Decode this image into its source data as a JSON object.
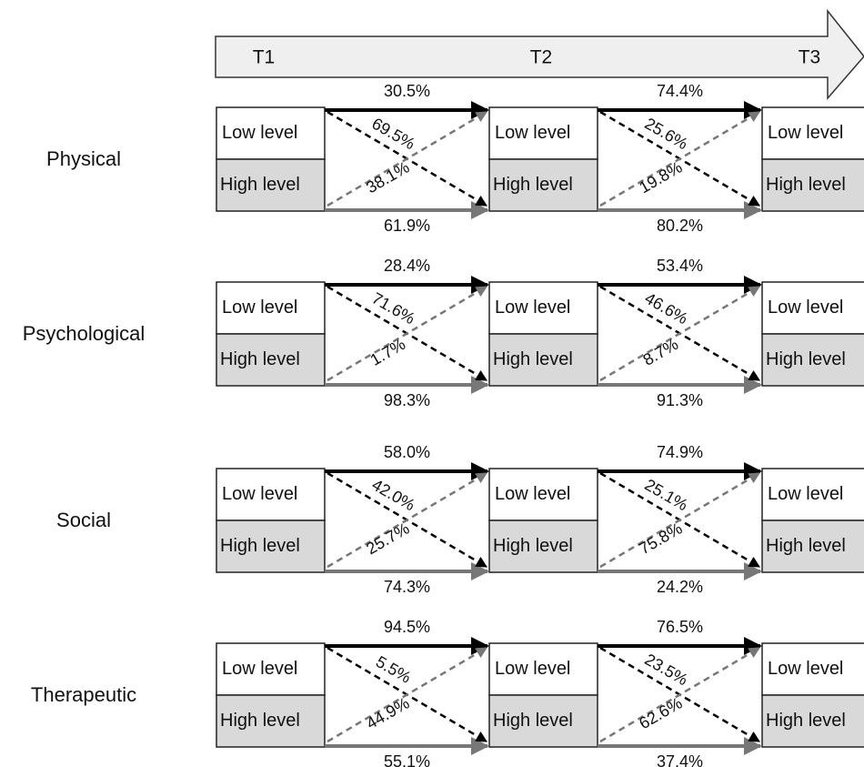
{
  "timeline": [
    "T1",
    "T2",
    "T3"
  ],
  "levels": [
    "Low level",
    "High level"
  ],
  "rows": [
    {
      "label": "Physical",
      "transitions": [
        {
          "stay_low": "30.5%",
          "low_to_high": "69.5%",
          "high_to_low": "38.1%",
          "stay_high": "61.9%"
        },
        {
          "stay_low": "74.4%",
          "low_to_high": "25.6%",
          "high_to_low": "19.8%",
          "stay_high": "80.2%"
        }
      ]
    },
    {
      "label": "Psychological",
      "transitions": [
        {
          "stay_low": "28.4%",
          "low_to_high": "71.6%",
          "high_to_low": "1.7%",
          "stay_high": "98.3%"
        },
        {
          "stay_low": "53.4%",
          "low_to_high": "46.6%",
          "high_to_low": "8.7%",
          "stay_high": "91.3%"
        }
      ]
    },
    {
      "label": "Social",
      "transitions": [
        {
          "stay_low": "58.0%",
          "low_to_high": "42.0%",
          "high_to_low": "25.7%",
          "stay_high": "74.3%"
        },
        {
          "stay_low": "74.9%",
          "low_to_high": "25.1%",
          "high_to_low": "75.8%",
          "stay_high": "24.2%"
        }
      ]
    },
    {
      "label": "Therapeutic",
      "transitions": [
        {
          "stay_low": "94.5%",
          "low_to_high": "5.5%",
          "high_to_low": "44.9%",
          "stay_high": "55.1%"
        },
        {
          "stay_low": "76.5%",
          "low_to_high": "23.5%",
          "high_to_low": "62.6%",
          "stay_high": "37.4%"
        }
      ]
    }
  ]
}
